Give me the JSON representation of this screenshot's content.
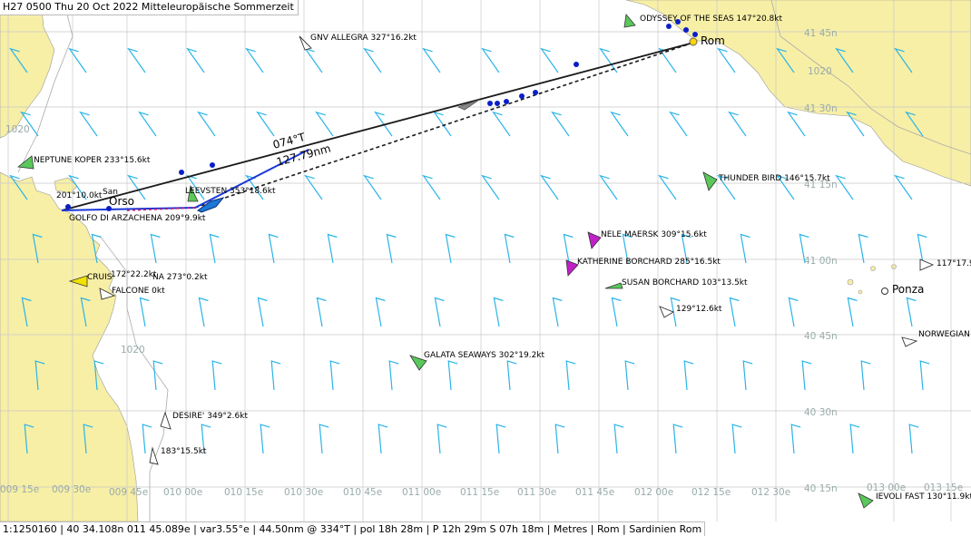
{
  "header": {
    "title": "H27 0500 Thu 20 Oct 2022 Mitteleuropäische Sommerzeit"
  },
  "status": {
    "text": "1:1250160 | 40 34.108n 011 45.089e | var3.55°e | 44.50nm @ 334°T | pol 18h 28m | P 12h 29m S 07h 18m | Metres | Rom | Sardinien Rom"
  },
  "route": {
    "bearing_label": "074°T",
    "distance_label": "127.79nm"
  },
  "places": {
    "rome": "Rom",
    "ponza": "Ponza"
  },
  "lat_labels": [
    "41 45n",
    "41 30n",
    "41 15n",
    "41 00n",
    "40 45n",
    "40 30n",
    "40 15n"
  ],
  "lon_labels": [
    "009 15e",
    "009 30e",
    "009 45e",
    "010 00e",
    "010 15e",
    "010 30e",
    "010 45e",
    "011 00e",
    "011 15e",
    "011 30e",
    "011 45e",
    "012 00e",
    "012 15e",
    "012 30e",
    "013 00e",
    "013 15e"
  ],
  "depth_labels": [
    "1020",
    "1020",
    "1020"
  ],
  "vessels": [
    "ODYSSEY OF THE SEAS 147°20.8kt",
    "GNV ALLEGRA 327°16.2kt",
    "NEPTUNE KOPER 233°15.6kt",
    "THUNDER BIRD 146°15.7kt",
    "LEEVSTEN 353°18.6kt",
    "GOLFO DI ARZACHENA 209°9.9kt",
    "NELE MAERSK 309°15.6kt",
    "KATHERINE BORCHARD 285°16.5kt",
    "SUSAN BORCHARD 103°13.5kt",
    "129°12.6kt",
    "117°17.9",
    "NORWEGIAN",
    "GALATA SEAWAYS 302°19.2kt",
    "DESIRE' 349°2.6kt",
    "183°15.5kt",
    "IEVOLI FAST 130°11.9kt",
    "FALCONE 0kt",
    "CRUIS",
    "172°22.2kt",
    "NA 273°0.2kt",
    "201°10.0kt",
    "San",
    "Orso"
  ],
  "colors": {
    "land": "#f7efa6",
    "sea": "#ffffff",
    "wind": "#2ab4e8",
    "grid": "#c8c8c8",
    "route": "#1a1a1a",
    "track": "#1a38d8"
  }
}
